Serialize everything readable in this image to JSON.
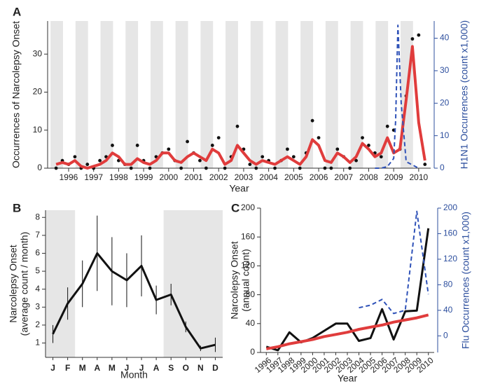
{
  "chart_data": [
    {
      "type": "line",
      "label": "A",
      "xlabel": "Year",
      "ylabel": [
        "Occurrences of Narcolepsy Onset"
      ],
      "y2label": [
        "H1N1 Occurrences (count x1,000)"
      ],
      "x": [
        1996,
        1996.25,
        1996.5,
        1996.75,
        1997,
        1997.25,
        1997.5,
        1997.75,
        1998,
        1998.25,
        1998.5,
        1998.75,
        1999,
        1999.25,
        1999.5,
        1999.75,
        2000,
        2000.25,
        2000.5,
        2000.75,
        2001,
        2001.25,
        2001.5,
        2001.75,
        2002,
        2002.25,
        2002.5,
        2002.75,
        2003,
        2003.25,
        2003.5,
        2003.75,
        2004,
        2004.25,
        2004.5,
        2004.75,
        2005,
        2005.25,
        2005.5,
        2005.75,
        2006,
        2006.25,
        2006.5,
        2006.75,
        2007,
        2007.25,
        2007.5,
        2007.75,
        2008,
        2008.25,
        2008.5,
        2008.75,
        2009,
        2009.25,
        2009.5,
        2009.75,
        2010,
        2010.25,
        2010.5,
        2010.75
      ],
      "xlim": [
        1995.66,
        2010.98
      ],
      "xticks": [
        {
          "value": 1996.5,
          "label": "1996"
        },
        {
          "value": 1997.5,
          "label": "1997"
        },
        {
          "value": 1998.5,
          "label": "1998"
        },
        {
          "value": 1999.5,
          "label": "1999"
        },
        {
          "value": 2000.5,
          "label": "2000"
        },
        {
          "value": 2001.5,
          "label": "2001"
        },
        {
          "value": 2002.5,
          "label": "2002"
        },
        {
          "value": 2003.5,
          "label": "2003"
        },
        {
          "value": 2004.5,
          "label": "2004"
        },
        {
          "value": 2005.5,
          "label": "2005"
        },
        {
          "value": 2006.5,
          "label": "2006"
        },
        {
          "value": 2007.5,
          "label": "2007"
        },
        {
          "value": 2008.5,
          "label": "2008"
        },
        {
          "value": 2009.5,
          "label": "2009"
        },
        {
          "value": 2010.5,
          "label": "2010"
        }
      ],
      "ylim": [
        0,
        38.7
      ],
      "yticks": [
        0,
        10,
        20,
        30
      ],
      "y2lim": [
        0,
        45.3
      ],
      "y2ticks": [
        0,
        10,
        20,
        30,
        40
      ],
      "series": [
        {
          "type": "scatter",
          "color": "#111111",
          "values": [
            0,
            2,
            1,
            3,
            0,
            1,
            0,
            2,
            3,
            6,
            2,
            1,
            0,
            6,
            2,
            0,
            3,
            4,
            5,
            2,
            0,
            7,
            4,
            2,
            0,
            6,
            8,
            0,
            3,
            11,
            5,
            1,
            0,
            3,
            2,
            0,
            2,
            5,
            3,
            0,
            4,
            12.5,
            8,
            0,
            0,
            5,
            3,
            0,
            2,
            8,
            6,
            4,
            3,
            11,
            10,
            5,
            19,
            34,
            35,
            1
          ]
        },
        {
          "color": "#e03c3c",
          "width": 4,
          "values": [
            1,
            1.5,
            1,
            2,
            0.5,
            0,
            0.5,
            1,
            2,
            4,
            3,
            1,
            1,
            2.5,
            1.5,
            1,
            2,
            4,
            4,
            2,
            1.5,
            3,
            4,
            3,
            2,
            5,
            4,
            1,
            2,
            6,
            4,
            2,
            1,
            2,
            1.5,
            1,
            2,
            3,
            2,
            1,
            3,
            7.5,
            6,
            2,
            1.5,
            4,
            3,
            1.5,
            3,
            6.5,
            5,
            3,
            4,
            8,
            4,
            5,
            18,
            32,
            12,
            2
          ]
        },
        {
          "axis": "y2",
          "color": "#2f52b8",
          "dash": true,
          "width": 2,
          "x": [
            2008.75,
            2009,
            2009.25,
            2009.5,
            2009.58,
            2009.67,
            2009.8,
            2010,
            2010.25,
            2010.5
          ],
          "values": [
            0,
            0,
            0.5,
            3,
            15,
            44,
            20,
            2,
            1,
            0
          ]
        }
      ]
    },
    {
      "type": "line",
      "label": "B",
      "xlabel": "Month",
      "ylabel": [
        "Narcolepsy Onset",
        "(average count / month)"
      ],
      "categories": [
        "J",
        "F",
        "M",
        "A",
        "M",
        "J",
        "J",
        "A",
        "S",
        "O",
        "N",
        "D"
      ],
      "ylim": [
        0.2,
        8.4
      ],
      "yticks": [
        1,
        2,
        3,
        4,
        5,
        6,
        7,
        8
      ],
      "series": [
        {
          "color": "#111111",
          "width": 3,
          "values": [
            1.5,
            3.2,
            4.3,
            6.0,
            5.0,
            4.5,
            5.3,
            3.4,
            3.7,
            1.9,
            0.7,
            0.9
          ],
          "errors": [
            0.5,
            0.9,
            1.3,
            2.1,
            1.9,
            1.5,
            1.7,
            0.8,
            0.6,
            0.3,
            0.15,
            0.4
          ]
        }
      ]
    },
    {
      "type": "line",
      "label": "C",
      "xlabel": "Year",
      "ylabel": [
        "Narcolepsy Onset",
        "(annual count)"
      ],
      "y2label": [
        "Flu Occurrences (count x1,000)"
      ],
      "categories": [
        "1996",
        "1997",
        "1998",
        "1999",
        "2000",
        "2001",
        "2002",
        "2003",
        "2004",
        "2005",
        "2006",
        "2007",
        "2008",
        "2009",
        "2010"
      ],
      "ylim": [
        0,
        200
      ],
      "yticks": [
        0,
        40,
        80,
        120,
        160,
        200
      ],
      "y2lim": [
        -26,
        200
      ],
      "y2ticks": [
        0,
        40,
        80,
        120,
        160,
        200
      ],
      "series": [
        {
          "color": "#111111",
          "width": 3,
          "values": [
            8,
            3,
            28,
            14,
            20,
            30,
            40,
            40,
            16,
            20,
            60,
            18,
            57,
            58,
            172
          ]
        },
        {
          "color": "#e03c3c",
          "width": 4,
          "values": [
            5,
            8,
            12,
            15,
            18,
            22,
            25,
            28,
            32,
            35,
            38,
            42,
            45,
            48,
            52
          ]
        },
        {
          "axis": "y2",
          "color": "#2f52b8",
          "dash": true,
          "width": 2,
          "values": [
            null,
            null,
            null,
            null,
            null,
            null,
            null,
            null,
            44,
            48,
            57,
            35,
            40,
            195,
            65
          ]
        }
      ]
    }
  ]
}
